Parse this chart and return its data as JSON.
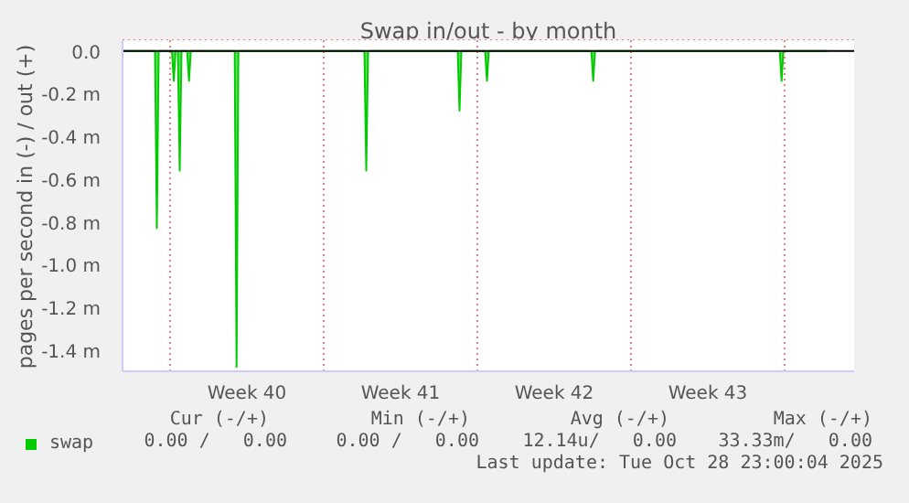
{
  "chart_data": {
    "type": "area",
    "title": "Swap in/out - by month",
    "ylabel": "pages per second in (-) / out (+)",
    "x": [
      "2025-09-26T20:00",
      "2025-09-28T07:30",
      "2025-09-28T09:30",
      "2025-09-28T11:30",
      "2025-09-29T02:00",
      "2025-09-29T04:00",
      "2025-09-29T06:00",
      "2025-09-29T08:30",
      "2025-09-29T10:30",
      "2025-09-29T12:30",
      "2025-09-29T18:40",
      "2025-09-29T20:40",
      "2025-09-29T22:40",
      "2025-10-01T22:40",
      "2025-10-02T00:40",
      "2025-10-02T02:40",
      "2025-10-07T20:30",
      "2025-10-07T22:30",
      "2025-10-08T00:30",
      "2025-10-12T02:30",
      "2025-10-12T04:30",
      "2025-10-12T06:30",
      "2025-10-13T08:30",
      "2025-10-13T10:30",
      "2025-10-13T12:30",
      "2025-10-18T04:40",
      "2025-10-18T06:40",
      "2025-10-18T08:40",
      "2025-10-26T18:40",
      "2025-10-26T20:40",
      "2025-10-26T22:40",
      "2025-10-28T23:00"
    ],
    "series": [
      {
        "name": "swap",
        "color": "#00cc00",
        "values": [
          0,
          0,
          -0.83,
          0,
          0,
          -0.14,
          0,
          0,
          -0.56,
          0,
          0,
          -0.14,
          0,
          0,
          -1.48,
          0,
          0,
          -0.56,
          0,
          0,
          -0.28,
          0,
          0,
          -0.14,
          0,
          0,
          -0.14,
          0,
          0,
          -0.14,
          0,
          0
        ]
      }
    ],
    "xlim": [
      "2025-09-26T20:00",
      "2025-10-30T04:00"
    ],
    "xticks": [
      {
        "value": "2025-09-29",
        "label": null
      },
      {
        "value": "2025-10-02T12:00",
        "label": "Week 40"
      },
      {
        "value": "2025-10-06",
        "label": null
      },
      {
        "value": "2025-10-09T12:00",
        "label": "Week 41"
      },
      {
        "value": "2025-10-13",
        "label": null
      },
      {
        "value": "2025-10-16T12:00",
        "label": "Week 42"
      },
      {
        "value": "2025-10-20",
        "label": null
      },
      {
        "value": "2025-10-23T12:00",
        "label": "Week 43"
      },
      {
        "value": "2025-10-27",
        "label": null
      }
    ],
    "ylim": [
      -1.5,
      0.05
    ],
    "yticks": [
      {
        "value": 0,
        "label": "0.0"
      },
      {
        "value": -0.2,
        "label": "-0.2 m"
      },
      {
        "value": -0.4,
        "label": "-0.4 m"
      },
      {
        "value": -0.6,
        "label": "-0.6 m"
      },
      {
        "value": -0.8,
        "label": "-0.8 m"
      },
      {
        "value": -1.0,
        "label": "-1.0 m"
      },
      {
        "value": -1.2,
        "label": "-1.2 m"
      },
      {
        "value": -1.4,
        "label": "-1.4 m"
      }
    ],
    "grid": true,
    "legend": "bottom",
    "annotations": [
      "Cur (-/+)",
      "Min (-/+)",
      "Avg (-/+)",
      "Max (-/+)",
      "0.00 /   0.00",
      "0.00 /   0.00",
      "12.14u/   0.00",
      "33.33m/   0.00",
      "Last update: Tue Oct 28 23:00:04 2025"
    ]
  }
}
